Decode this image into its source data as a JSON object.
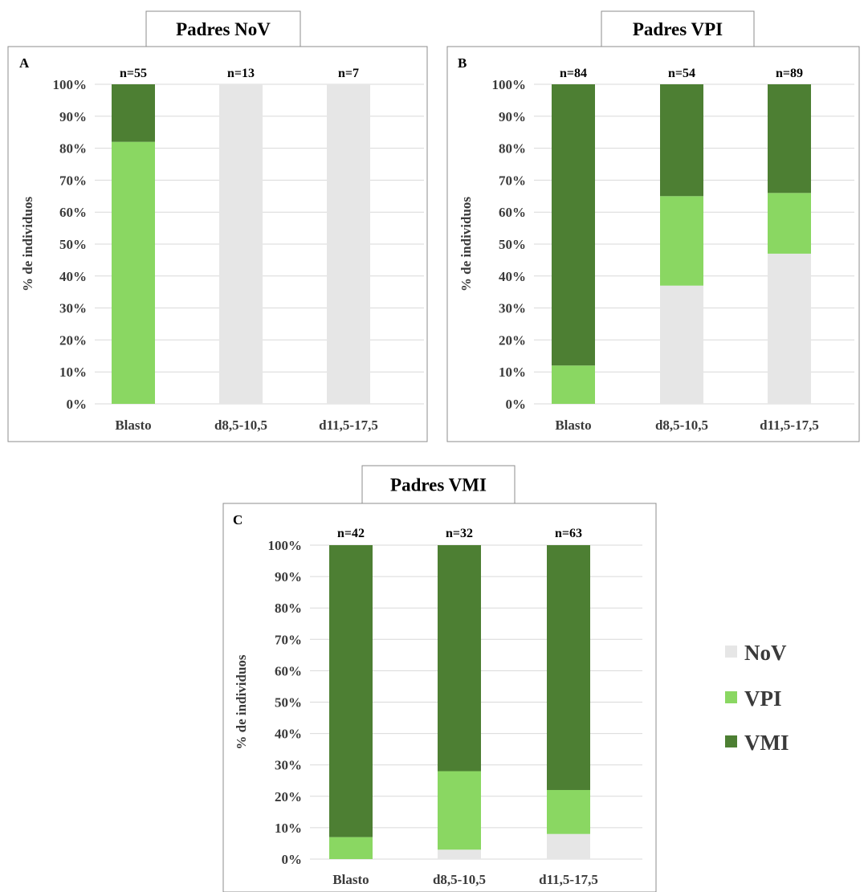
{
  "colors": {
    "NoV": "#e6e6e6",
    "VPI": "#8ad762",
    "VMI": "#4d7f33"
  },
  "legend": [
    {
      "key": "NoV",
      "label": "NoV"
    },
    {
      "key": "VPI",
      "label": "VPI"
    },
    {
      "key": "VMI",
      "label": "VMI"
    }
  ],
  "chart_data": [
    {
      "type": "bar",
      "stacked": true,
      "title": "Padres NoV",
      "panel_label": "A",
      "ylabel": "% de individuos",
      "ylim": [
        0,
        100
      ],
      "yticks": [
        "0%",
        "10%",
        "20%",
        "30%",
        "40%",
        "50%",
        "60%",
        "70%",
        "80%",
        "90%",
        "100%"
      ],
      "categories": [
        "Blasto",
        "d8,5-10,5",
        "d11,5-17,5"
      ],
      "n_labels": [
        "n=55",
        "n=13",
        "n=7"
      ],
      "series": [
        {
          "name": "NoV",
          "values": [
            0,
            100,
            100
          ]
        },
        {
          "name": "VPI",
          "values": [
            82,
            0,
            0
          ]
        },
        {
          "name": "VMI",
          "values": [
            18,
            0,
            0
          ]
        }
      ]
    },
    {
      "type": "bar",
      "stacked": true,
      "title": "Padres VPI",
      "panel_label": "B",
      "ylabel": "% de individuos",
      "ylim": [
        0,
        100
      ],
      "yticks": [
        "0%",
        "10%",
        "20%",
        "30%",
        "40%",
        "50%",
        "60%",
        "70%",
        "80%",
        "90%",
        "100%"
      ],
      "categories": [
        "Blasto",
        "d8,5-10,5",
        "d11,5-17,5"
      ],
      "n_labels": [
        "n=84",
        "n=54",
        "n=89"
      ],
      "series": [
        {
          "name": "NoV",
          "values": [
            0,
            37,
            47
          ]
        },
        {
          "name": "VPI",
          "values": [
            12,
            28,
            19
          ]
        },
        {
          "name": "VMI",
          "values": [
            88,
            35,
            34
          ]
        }
      ]
    },
    {
      "type": "bar",
      "stacked": true,
      "title": "Padres VMI",
      "panel_label": "C",
      "ylabel": "% de individuos",
      "ylim": [
        0,
        100
      ],
      "yticks": [
        "0%",
        "10%",
        "20%",
        "30%",
        "40%",
        "50%",
        "60%",
        "70%",
        "80%",
        "90%",
        "100%"
      ],
      "categories": [
        "Blasto",
        "d8,5-10,5",
        "d11,5-17,5"
      ],
      "n_labels": [
        "n=42",
        "n=32",
        "n=63"
      ],
      "series": [
        {
          "name": "NoV",
          "values": [
            0,
            3,
            8
          ]
        },
        {
          "name": "VPI",
          "values": [
            7,
            25,
            14
          ]
        },
        {
          "name": "VMI",
          "values": [
            93,
            72,
            78
          ]
        }
      ]
    }
  ]
}
